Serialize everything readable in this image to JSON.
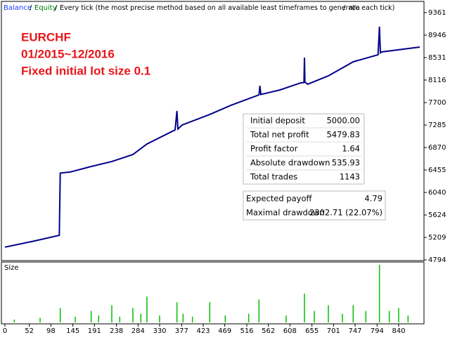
{
  "chart_data": {
    "type": "line",
    "series": [
      {
        "name": "Balance",
        "color": "#00008b",
        "x": [
          0,
          64,
          116,
          118,
          139,
          184,
          228,
          273,
          303,
          363,
          367,
          369,
          378,
          437,
          482,
          542,
          544,
          546,
          587,
          631,
          638,
          639,
          640,
          646,
          690,
          743,
          796,
          799,
          801,
          803,
          885
        ],
        "values": [
          5030,
          5146,
          5249,
          6398,
          6417,
          6520,
          6611,
          6741,
          6935,
          7195,
          7545,
          7210,
          7286,
          7480,
          7649,
          7843,
          8010,
          7850,
          7934,
          8064,
          8070,
          8531,
          8080,
          8040,
          8194,
          8453,
          8583,
          9102,
          8620,
          8635,
          8725
        ]
      }
    ],
    "header": [
      "Equity",
      "Every tick (the most precise method based on all available least timeframes to generate each tick)",
      "n/a"
    ],
    "annotations": [
      "EURCHF",
      "01/2015~12/2016",
      "Fixed initial lot size 0.1"
    ],
    "ylim": [
      4794,
      9361
    ],
    "yticks": [
      4794,
      5209,
      5624,
      6040,
      6455,
      6870,
      7285,
      7700,
      8116,
      8531,
      8946,
      9361
    ],
    "xlim": [
      0,
      894
    ],
    "xticks": [
      0,
      52,
      98,
      145,
      191,
      238,
      284,
      330,
      377,
      423,
      469,
      516,
      562,
      608,
      655,
      701,
      747,
      794,
      840
    ],
    "size_panel": {
      "label": "Size",
      "color": "#00c000",
      "ylim": [
        0,
        1
      ],
      "x": [
        20,
        75,
        118,
        150,
        184,
        200,
        228,
        245,
        273,
        290,
        303,
        330,
        367,
        380,
        400,
        437,
        470,
        520,
        542,
        600,
        639,
        660,
        690,
        720,
        743,
        770,
        799,
        820,
        840,
        860
      ],
      "values": [
        0.05,
        0.08,
        0.25,
        0.1,
        0.2,
        0.12,
        0.3,
        0.1,
        0.25,
        0.15,
        0.45,
        0.12,
        0.35,
        0.15,
        0.1,
        0.35,
        0.12,
        0.15,
        0.4,
        0.12,
        0.5,
        0.2,
        0.3,
        0.15,
        0.3,
        0.2,
        1.0,
        0.2,
        0.25,
        0.12
      ]
    },
    "stats": [
      [
        "Initial deposit",
        "5000.00"
      ],
      [
        "Total net profit",
        "5479.83"
      ],
      [
        "Profit factor",
        "1.64"
      ],
      [
        "Absolute drawdown",
        "535.93"
      ],
      [
        "Total trades",
        "1143"
      ]
    ],
    "stats2": [
      [
        "Expected payoff",
        "4.79"
      ],
      [
        "Maximal drawdown",
        "2302.71 (22.07%)"
      ]
    ]
  }
}
